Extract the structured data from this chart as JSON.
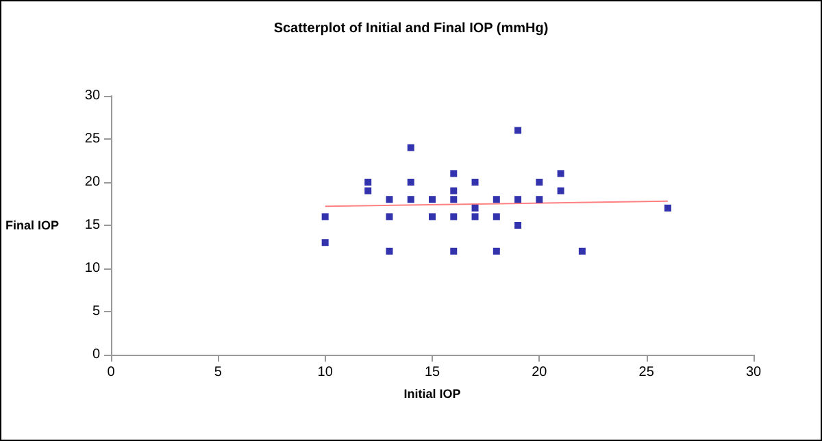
{
  "chart_data": {
    "type": "scatter",
    "title": "Scatterplot of Initial and Final IOP (mmHg)",
    "xlabel": "Initial IOP",
    "ylabel": "Final IOP",
    "xlim": [
      0,
      30
    ],
    "xticks": [
      0,
      5,
      10,
      15,
      20,
      25,
      30
    ],
    "ylim": [
      0,
      30
    ],
    "yticks": [
      0,
      5,
      10,
      15,
      20,
      25,
      30
    ],
    "grid": false,
    "marker": "square",
    "series": [
      {
        "color": "#000099",
        "x": [
          10,
          10,
          12,
          12,
          13,
          13,
          13,
          14,
          14,
          14,
          15,
          15,
          16,
          16,
          16,
          16,
          16,
          17,
          17,
          17,
          18,
          18,
          18,
          19,
          19,
          19,
          20,
          20,
          21,
          21,
          22,
          26
        ],
        "values": [
          16,
          13,
          20,
          19,
          18,
          16,
          12,
          24,
          20,
          18,
          18,
          16,
          21,
          19,
          18,
          16,
          12,
          20,
          17,
          16,
          18,
          16,
          12,
          26,
          18,
          15,
          20,
          18,
          21,
          19,
          12,
          17
        ]
      },
      {
        "type": "line",
        "color": "#ff8080",
        "marker": "none",
        "x": [
          10,
          26
        ],
        "values": [
          17.2,
          17.8
        ]
      }
    ]
  }
}
